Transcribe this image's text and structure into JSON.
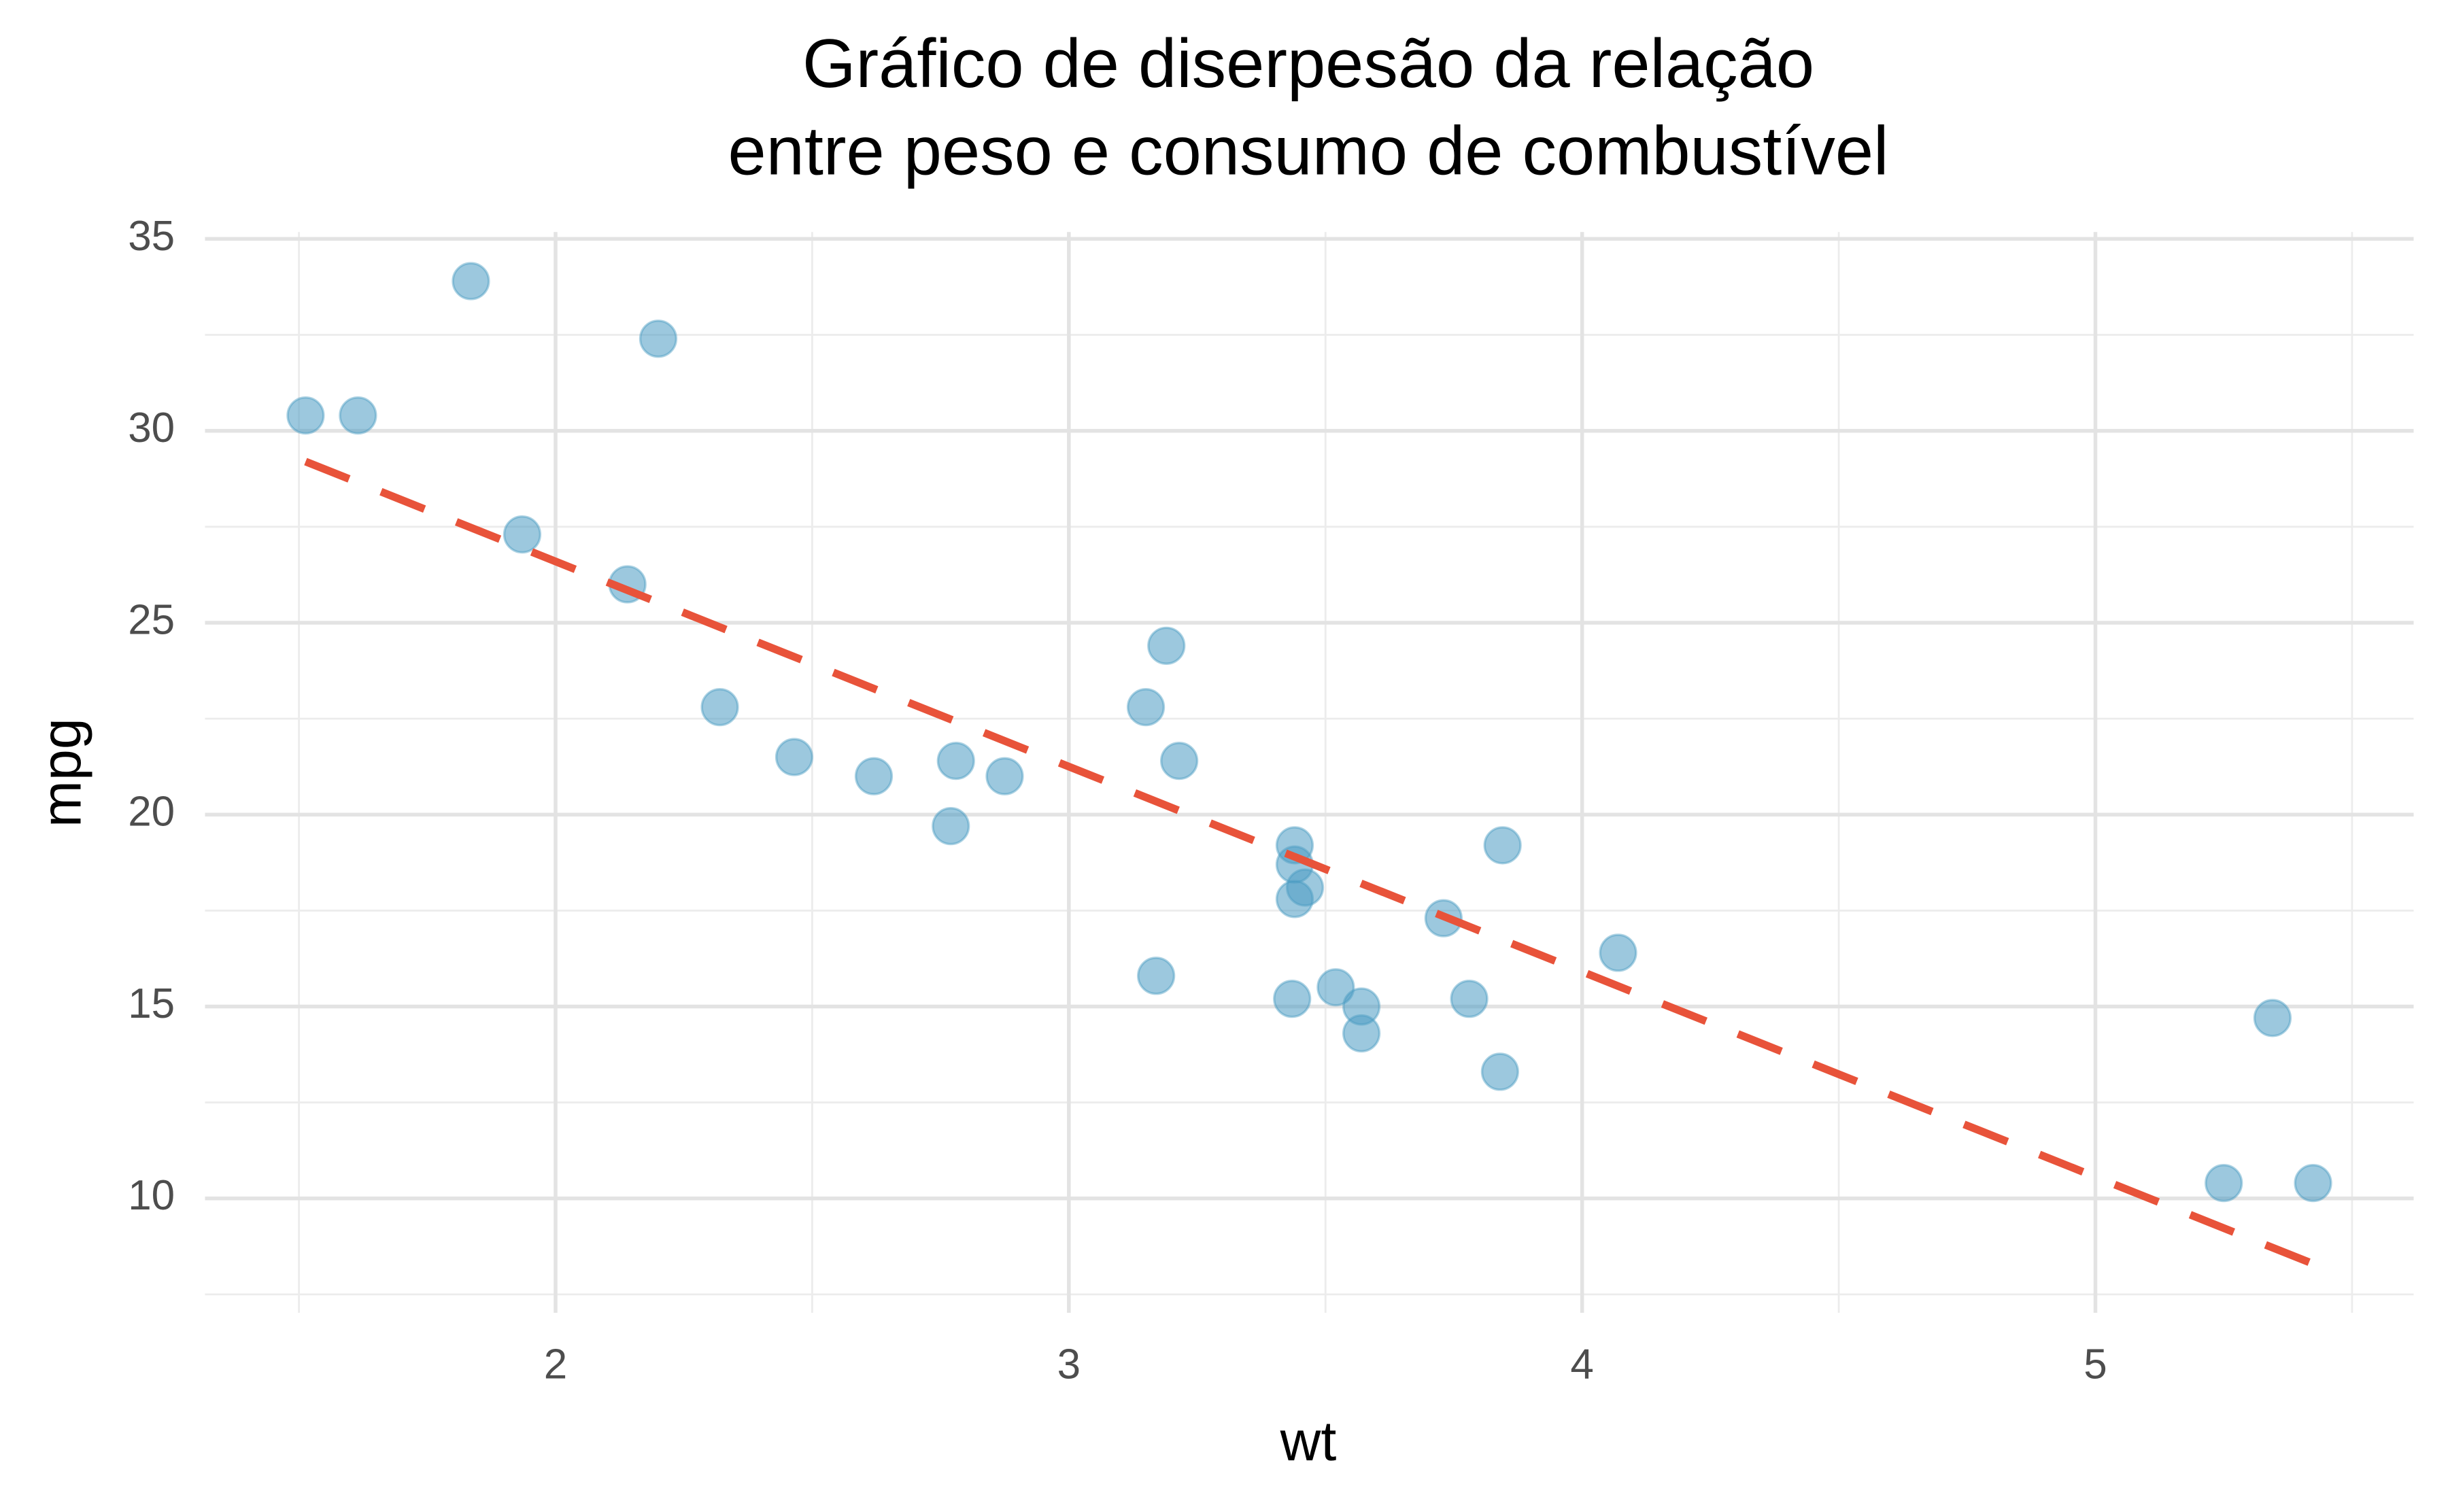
{
  "chart_data": {
    "type": "scatter",
    "title": [
      "Gráfico de diserpesão da relação",
      "entre peso e consumo de combustível"
    ],
    "x_label": "wt",
    "y_label": "mpg",
    "points": {
      "color": "#4a9bc2",
      "x": [
        2.62,
        2.875,
        2.32,
        3.215,
        3.44,
        3.46,
        3.57,
        3.19,
        3.15,
        3.44,
        3.44,
        4.07,
        3.73,
        3.78,
        5.25,
        5.424,
        5.345,
        2.2,
        1.615,
        1.835,
        2.465,
        3.52,
        3.435,
        3.84,
        3.845,
        1.935,
        2.14,
        1.513,
        3.17,
        2.77,
        3.57,
        2.78
      ],
      "values": [
        21.0,
        21.0,
        22.8,
        21.4,
        18.7,
        18.1,
        14.3,
        24.4,
        22.8,
        19.2,
        17.8,
        16.4,
        17.3,
        15.2,
        10.4,
        10.4,
        14.7,
        32.4,
        30.4,
        33.9,
        21.5,
        15.5,
        15.2,
        13.3,
        19.2,
        27.3,
        26.0,
        30.4,
        15.8,
        19.7,
        15.0,
        21.4
      ]
    },
    "trend": {
      "color": "#e8533a",
      "dashed": true,
      "x": [
        1.513,
        5.424
      ],
      "values": [
        29.199,
        8.296
      ]
    },
    "xlim": [
      1.317,
      5.62
    ],
    "ylim": [
      7.02,
      35.18
    ],
    "xticks": [
      2,
      3,
      4,
      5
    ],
    "yticks": [
      10,
      15,
      20,
      25,
      30,
      35
    ],
    "x_minor_gridlines": [
      1.5,
      2.5,
      3.5,
      4.5,
      5.5
    ],
    "y_minor_gridlines": [
      7.5,
      12.5,
      17.5,
      22.5,
      27.5,
      32.5
    ],
    "grid": true
  }
}
